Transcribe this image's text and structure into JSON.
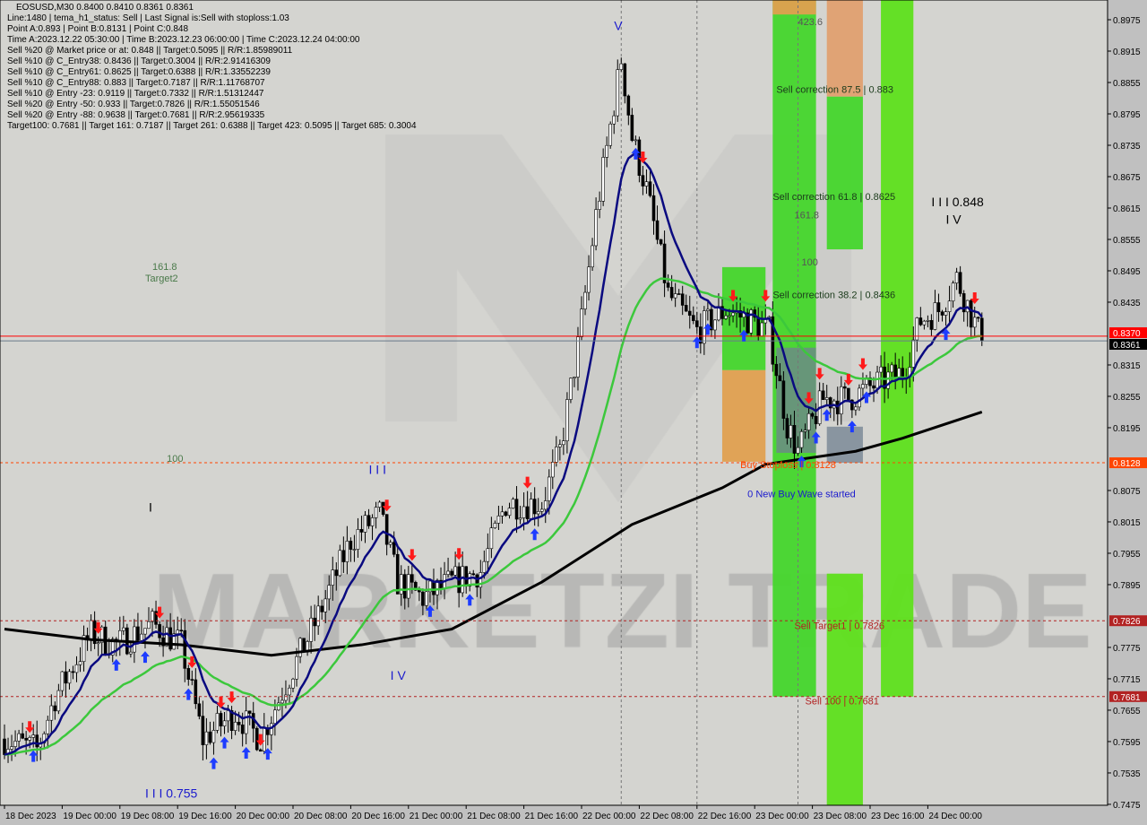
{
  "header": {
    "symbol_line": "EOSUSD,M30  0.8400 0.8410 0.8361 0.8361",
    "lines": [
      "Line:1480 | tema_h1_status: Sell | Last Signal is:Sell with stoploss:1.03",
      "Point A:0.893 | Point B:0.8131 | Point C:0.848",
      "Time A:2023.12.22 05:30:00 | Time B:2023.12.23 06:00:00 | Time C:2023.12.24 04:00:00",
      "Sell %20 @ Market price or at: 0.848 || Target:0.5095 || R/R:1.85989011",
      "Sell %10 @ C_Entry38: 0.8436 || Target:0.3004 || R/R:2.91416309",
      "Sell %10 @ C_Entry61: 0.8625 || Target:0.6388 || R/R:1.33552239",
      "Sell %10 @ C_Entry88: 0.883 || Target:0.7187 || R/R:1.11768707",
      "Sell %10 @ Entry -23: 0.9119 || Target:0.7332 || R/R:1.51312447",
      "Sell %20 @ Entry -50: 0.933 || Target:0.7826 || R/R:1.55051546",
      "Sell %20 @ Entry -88: 0.9638 || Target:0.7681 || R/R:2.95619335",
      "Target100: 0.7681 || Target 161: 0.7187 || Target 261: 0.6388 || Target 423: 0.5095 || Target 685: 0.3004"
    ]
  },
  "watermark": "MARKETZI TRADE",
  "chart_data": {
    "type": "candlestick",
    "symbol": "EOSUSD",
    "timeframe": "M30",
    "ylim": [
      0.7445,
      0.9005
    ],
    "y_ticks": [
      "0.8975",
      "0.8915",
      "0.8855",
      "0.8795",
      "0.8735",
      "0.8675",
      "0.8615",
      "0.8555",
      "0.8495",
      "0.8435",
      "0.8315",
      "0.8255",
      "0.8195",
      "0.8075",
      "0.8015",
      "0.7955",
      "0.7895",
      "0.7775",
      "0.7715",
      "0.7655",
      "0.7595",
      "0.7535",
      "0.7475"
    ],
    "x_ticks": [
      {
        "t": "2023-12-18 16:00",
        "label": "18 Dec 2023"
      },
      {
        "t": "2023-12-19 00:00",
        "label": "19 Dec 00:00"
      },
      {
        "t": "2023-12-19 08:00",
        "label": "19 Dec 08:00"
      },
      {
        "t": "2023-12-19 16:00",
        "label": "19 Dec 16:00"
      },
      {
        "t": "2023-12-20 00:00",
        "label": "20 Dec 00:00"
      },
      {
        "t": "2023-12-20 08:00",
        "label": "20 Dec 08:00"
      },
      {
        "t": "2023-12-20 16:00",
        "label": "20 Dec 16:00"
      },
      {
        "t": "2023-12-21 00:00",
        "label": "21 Dec 00:00"
      },
      {
        "t": "2023-12-21 08:00",
        "label": "21 Dec 08:00"
      },
      {
        "t": "2023-12-21 16:00",
        "label": "21 Dec 16:00"
      },
      {
        "t": "2023-12-22 00:00",
        "label": "22 Dec 00:00"
      },
      {
        "t": "2023-12-22 08:00",
        "label": "22 Dec 08:00"
      },
      {
        "t": "2023-12-22 16:00",
        "label": "22 Dec 16:00"
      },
      {
        "t": "2023-12-23 00:00",
        "label": "23 Dec 00:00"
      },
      {
        "t": "2023-12-23 08:00",
        "label": "23 Dec 08:00"
      },
      {
        "t": "2023-12-23 16:00",
        "label": "23 Dec 16:00"
      },
      {
        "t": "2023-12-24 00:00",
        "label": "24 Dec 00:00"
      }
    ],
    "price_path_approx": [
      [
        "2023-12-18 16:00",
        0.76
      ],
      [
        "2023-12-18 20:30",
        0.758
      ],
      [
        "2023-12-18 23:00",
        0.768
      ],
      [
        "2023-12-19 04:00",
        0.78
      ],
      [
        "2023-12-19 07:30",
        0.778
      ],
      [
        "2023-12-19 12:30",
        0.782
      ],
      [
        "2023-12-19 16:30",
        0.778
      ],
      [
        "2023-12-19 19:30",
        0.76
      ],
      [
        "2023-12-20 00:00",
        0.765
      ],
      [
        "2023-12-20 03:30",
        0.76
      ],
      [
        "2023-12-20 07:30",
        0.772
      ],
      [
        "2023-12-20 11:00",
        0.782
      ],
      [
        "2023-12-20 16:00",
        0.798
      ],
      [
        "2023-12-20 20:00",
        0.803
      ],
      [
        "2023-12-20 22:30",
        0.79
      ],
      [
        "2023-12-21 02:00",
        0.787
      ],
      [
        "2023-12-21 06:00",
        0.79
      ],
      [
        "2023-12-21 10:00",
        0.792
      ],
      [
        "2023-12-21 13:30",
        0.805
      ],
      [
        "2023-12-21 18:30",
        0.805
      ],
      [
        "2023-12-21 21:00",
        0.815
      ],
      [
        "2023-12-21 23:30",
        0.835
      ],
      [
        "2023-12-22 02:00",
        0.86
      ],
      [
        "2023-12-22 05:30",
        0.89
      ],
      [
        "2023-12-22 07:00",
        0.875
      ],
      [
        "2023-12-22 09:00",
        0.865
      ],
      [
        "2023-12-22 12:00",
        0.845
      ],
      [
        "2023-12-22 16:00",
        0.838
      ],
      [
        "2023-12-22 20:00",
        0.842
      ],
      [
        "2023-12-22 23:30",
        0.84
      ],
      [
        "2023-12-23 02:00",
        0.838
      ],
      [
        "2023-12-23 04:30",
        0.82
      ],
      [
        "2023-12-23 06:00",
        0.815
      ],
      [
        "2023-12-23 09:30",
        0.825
      ],
      [
        "2023-12-23 13:00",
        0.825
      ],
      [
        "2023-12-23 17:00",
        0.828
      ],
      [
        "2023-12-23 20:30",
        0.83
      ],
      [
        "2023-12-23 23:00",
        0.84
      ],
      [
        "2023-12-24 01:30",
        0.842
      ],
      [
        "2023-12-24 04:00",
        0.848
      ],
      [
        "2023-12-24 07:30",
        0.8361
      ]
    ],
    "ma_black": [
      [
        "2023-12-18 16:00",
        0.781
      ],
      [
        "2023-12-19 04:00",
        0.779
      ],
      [
        "2023-12-19 16:30",
        0.778
      ],
      [
        "2023-12-20 05:00",
        0.776
      ],
      [
        "2023-12-20 17:30",
        0.778
      ],
      [
        "2023-12-21 06:00",
        0.781
      ],
      [
        "2023-12-21 18:30",
        0.79
      ],
      [
        "2023-12-22 07:00",
        0.801
      ],
      [
        "2023-12-22 19:30",
        0.808
      ],
      [
        "2023-12-23 01:30",
        0.8125
      ],
      [
        "2023-12-23 14:00",
        0.815
      ],
      [
        "2023-12-23 20:30",
        0.8175
      ],
      [
        "2023-12-24 07:30",
        0.8225
      ]
    ],
    "zones": [
      {
        "t1": "2023-12-22 19:30",
        "t2": "2023-12-23 01:30",
        "p1": 0.8502,
        "p2": 0.8305,
        "color": "#44d62c"
      },
      {
        "t1": "2023-12-22 19:30",
        "t2": "2023-12-23 01:30",
        "p1": 0.8305,
        "p2": 0.813,
        "color": "#e0a050"
      },
      {
        "t1": "2023-12-23 02:30",
        "t2": "2023-12-23 08:30",
        "p1": 0.9013,
        "p2": 0.7681,
        "color": "#44d62c"
      },
      {
        "t1": "2023-12-23 02:30",
        "t2": "2023-12-23 08:30",
        "p1": 0.9013,
        "p2": 0.8985,
        "color": "#e0a050"
      },
      {
        "t1": "2023-12-23 03:00",
        "t2": "2023-12-23 08:30",
        "p1": 0.8348,
        "p2": 0.8147,
        "color": "#708090"
      },
      {
        "t1": "2023-12-23 10:00",
        "t2": "2023-12-23 15:00",
        "p1": 0.9013,
        "p2": 0.8828,
        "color": "#e0a070"
      },
      {
        "t1": "2023-12-23 10:00",
        "t2": "2023-12-23 15:00",
        "p1": 0.8828,
        "p2": 0.8536,
        "color": "#44d62c"
      },
      {
        "t1": "2023-12-23 10:00",
        "t2": "2023-12-23 15:00",
        "p1": 0.8197,
        "p2": 0.8128,
        "color": "#708090"
      },
      {
        "t1": "2023-12-23 10:00",
        "t2": "2023-12-23 15:00",
        "p1": 0.7916,
        "p2": 0.746,
        "color": "#5ee01c"
      },
      {
        "t1": "2023-12-23 17:30",
        "t2": "2023-12-23 22:00",
        "p1": 0.9013,
        "p2": 0.7681,
        "color": "#5ee01c"
      }
    ],
    "hlines": [
      {
        "price": 0.8128,
        "label": "0.8128",
        "color": "#ff4500",
        "dashed": true
      },
      {
        "price": 0.7826,
        "label": "0.7826",
        "color": "#b22222",
        "dashed": true
      },
      {
        "price": 0.7681,
        "label": "0.7681",
        "color": "#b22222",
        "dashed": true
      },
      {
        "price": 0.837,
        "label": "0.8370",
        "color": "#ff0000",
        "dashed": false
      },
      {
        "price": 0.8361,
        "label": "0.8361",
        "color": "#000000",
        "dashed": false
      }
    ],
    "vlines": [
      "2023-12-22 05:30",
      "2023-12-22 16:00",
      "2023-12-23 06:00"
    ],
    "annotations": [
      {
        "t": "2023-12-23 06:00",
        "p": 0.8965,
        "text": "423.6",
        "color": "#555555"
      },
      {
        "t": "2023-12-23 03:00",
        "p": 0.8835,
        "text": "Sell correction 87.5 | 0.883",
        "color": "#1a3a1a"
      },
      {
        "t": "2023-12-23 02:30",
        "p": 0.863,
        "text": "Sell correction 61.8 | 0.8625",
        "color": "#1a3a1a"
      },
      {
        "t": "2023-12-23 05:30",
        "p": 0.8595,
        "text": "161.8",
        "color": "#555555"
      },
      {
        "t": "2023-12-23 06:30",
        "p": 0.8505,
        "text": "100",
        "color": "#555555"
      },
      {
        "t": "2023-12-23 02:30",
        "p": 0.8443,
        "text": "Sell correction 38.2 | 0.8436",
        "color": "#1a3a1a"
      },
      {
        "t": "2023-12-24 00:30",
        "p": 0.8618,
        "text": "I I I 0.848",
        "color": "#000000",
        "big": true
      },
      {
        "t": "2023-12-24 02:30",
        "p": 0.8585,
        "text": "I V",
        "color": "#000000",
        "big": true
      },
      {
        "t": "2023-12-19 12:30",
        "p": 0.8497,
        "text": "161.8",
        "color": "#4a7a4a"
      },
      {
        "t": "2023-12-19 11:30",
        "p": 0.848,
        "text": "Target2",
        "color": "#4a7a4a"
      },
      {
        "t": "2023-12-19 14:30",
        "p": 0.813,
        "text": "100",
        "color": "#4a7a4a"
      },
      {
        "t": "2023-12-20 18:30",
        "p": 0.8107,
        "text": "I I I",
        "color": "#1a1acd",
        "big": true
      },
      {
        "t": "2023-12-20 21:30",
        "p": 0.7713,
        "text": "I V",
        "color": "#1a1acd",
        "big": true
      },
      {
        "t": "2023-12-19 11:30",
        "p": 0.7488,
        "text": "I I I 0.755",
        "color": "#1a1acd",
        "big": true
      },
      {
        "t": "2023-12-22 04:30",
        "p": 0.8955,
        "text": "V",
        "color": "#1a1acd",
        "big": true
      },
      {
        "t": "2023-12-19 12:00",
        "p": 0.8035,
        "text": "I",
        "color": "#000000",
        "big": true
      },
      {
        "t": "2023-12-22 22:00",
        "p": 0.8118,
        "text": "Buy Stoploss | 0.8128",
        "color": "#ff4500"
      },
      {
        "t": "2023-12-22 23:00",
        "p": 0.8062,
        "text": "0 New Buy Wave started",
        "color": "#1a1acd"
      },
      {
        "t": "2023-12-23 05:30",
        "p": 0.781,
        "text": "Sell Target1 | 0.7826",
        "color": "#b22222"
      },
      {
        "t": "2023-12-23 07:00",
        "p": 0.7666,
        "text": "Sell 100 | 0.7681",
        "color": "#b22222"
      }
    ],
    "sell_arrows": [
      "2023-12-18 19:30",
      "2023-12-19 05:00",
      "2023-12-19 13:30",
      "2023-12-19 18:00",
      "2023-12-19 22:00",
      "2023-12-19 23:30",
      "2023-12-20 03:30",
      "2023-12-20 21:00",
      "2023-12-21 00:30",
      "2023-12-21 07:00",
      "2023-12-21 16:30",
      "2023-12-22 08:30",
      "2023-12-22 21:00",
      "2023-12-23 01:30",
      "2023-12-23 07:30",
      "2023-12-23 09:00",
      "2023-12-23 13:00",
      "2023-12-23 15:00",
      "2023-12-24 06:30"
    ],
    "buy_arrows": [
      "2023-12-18 20:00",
      "2023-12-19 07:30",
      "2023-12-19 11:30",
      "2023-12-19 17:30",
      "2023-12-19 21:00",
      "2023-12-19 22:30",
      "2023-12-20 01:30",
      "2023-12-20 04:30",
      "2023-12-21 03:00",
      "2023-12-21 08:30",
      "2023-12-21 17:30",
      "2023-12-22 07:30",
      "2023-12-22 16:00",
      "2023-12-22 17:30",
      "2023-12-22 22:30",
      "2023-12-23 06:30",
      "2023-12-23 08:30",
      "2023-12-23 10:00",
      "2023-12-23 13:30",
      "2023-12-23 15:30",
      "2023-12-24 02:30"
    ],
    "colors": {
      "background": "#d4d4d0",
      "bull": "#ffffff",
      "bear": "#000000",
      "ma_fast": "#0a0a80",
      "ma_mid": "#3cc83c",
      "ma_slow": "#000000",
      "buy_arrow": "#1e3cff",
      "sell_arrow": "#ff1a1a"
    }
  }
}
